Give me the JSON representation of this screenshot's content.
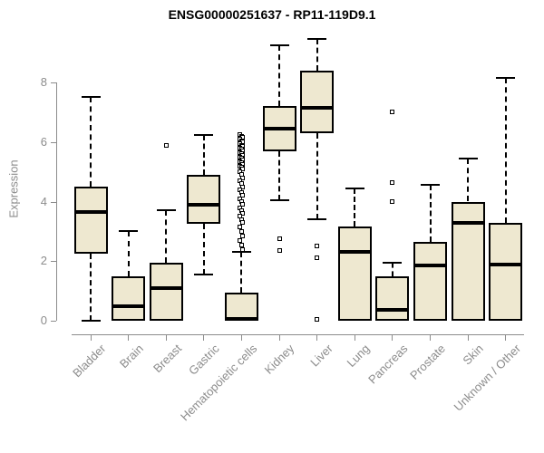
{
  "chart_data": {
    "type": "boxplot",
    "title": "ENSG00000251637 - RP11-119D9.1",
    "ylabel": "Expression",
    "xlabel": "",
    "yticks": [
      0,
      2,
      4,
      6,
      8
    ],
    "ylim": [
      -0.2,
      9.6
    ],
    "grid": false,
    "legend": false,
    "categories": [
      "Bladder",
      "Brain",
      "Breast",
      "Gastric",
      "Hematopoietic cells",
      "Kidney",
      "Liver",
      "Lung",
      "Pancreas",
      "Prostate",
      "Skin",
      "Unknown / Other"
    ],
    "boxes": [
      {
        "label": "Bladder",
        "whisker_low": 0,
        "q1": 2.25,
        "median": 3.65,
        "q3": 4.5,
        "whisker_high": 7.5,
        "outliers": []
      },
      {
        "label": "Brain",
        "whisker_low": 0,
        "q1": 0,
        "median": 0.5,
        "q3": 1.5,
        "whisker_high": 3.0,
        "outliers": []
      },
      {
        "label": "Breast",
        "whisker_low": 0,
        "q1": 0,
        "median": 1.1,
        "q3": 1.95,
        "whisker_high": 3.7,
        "outliers": [
          5.9
        ]
      },
      {
        "label": "Gastric",
        "whisker_low": 1.55,
        "q1": 3.25,
        "median": 3.9,
        "q3": 4.9,
        "whisker_high": 6.25,
        "outliers": []
      },
      {
        "label": "Hematopoietic cells",
        "whisker_low": 0,
        "q1": 0,
        "median": 0.05,
        "q3": 0.95,
        "whisker_high": 2.3,
        "outliers": [
          6.25,
          6.2,
          6.15,
          6.1,
          6.05,
          6.0,
          5.95,
          5.9,
          5.85,
          5.8,
          5.75,
          5.7,
          5.65,
          5.6,
          5.55,
          5.5,
          5.45,
          5.4,
          5.35,
          5.3,
          5.25,
          5.2,
          5.15,
          5.1,
          5.0,
          4.9,
          4.8,
          4.7,
          4.6,
          4.5,
          4.4,
          4.3,
          4.2,
          4.1,
          4.0,
          3.9,
          3.8,
          3.7,
          3.6,
          3.5,
          3.4,
          3.3,
          3.15,
          3.0,
          2.85,
          2.7,
          2.55,
          2.4
        ]
      },
      {
        "label": "Kidney",
        "whisker_low": 4.05,
        "q1": 5.7,
        "median": 6.45,
        "q3": 7.2,
        "whisker_high": 9.25,
        "outliers": [
          2.75,
          2.35
        ]
      },
      {
        "label": "Liver",
        "whisker_low": 3.4,
        "q1": 6.3,
        "median": 7.15,
        "q3": 8.4,
        "whisker_high": 9.45,
        "outliers": [
          2.5,
          2.1,
          0.05
        ]
      },
      {
        "label": "Lung",
        "whisker_low": 0,
        "q1": 0,
        "median": 2.3,
        "q3": 3.15,
        "whisker_high": 4.45,
        "outliers": []
      },
      {
        "label": "Pancreas",
        "whisker_low": 0,
        "q1": 0,
        "median": 0.35,
        "q3": 1.5,
        "whisker_high": 1.95,
        "outliers": [
          7.0,
          4.65,
          4.0
        ]
      },
      {
        "label": "Prostate",
        "whisker_low": 0,
        "q1": 0,
        "median": 1.85,
        "q3": 2.65,
        "whisker_high": 4.55,
        "outliers": []
      },
      {
        "label": "Skin",
        "whisker_low": 0,
        "q1": 0,
        "median": 3.3,
        "q3": 4.0,
        "whisker_high": 5.45,
        "outliers": []
      },
      {
        "label": "Unknown / Other",
        "whisker_low": 0,
        "q1": 0,
        "median": 1.9,
        "q3": 3.3,
        "whisker_high": 8.15,
        "outliers": []
      }
    ],
    "colors": {
      "box_fill": "#EEE8D0",
      "box_stroke": "#000000",
      "axis": "#8C8C8C",
      "title_color": "#000000"
    }
  }
}
